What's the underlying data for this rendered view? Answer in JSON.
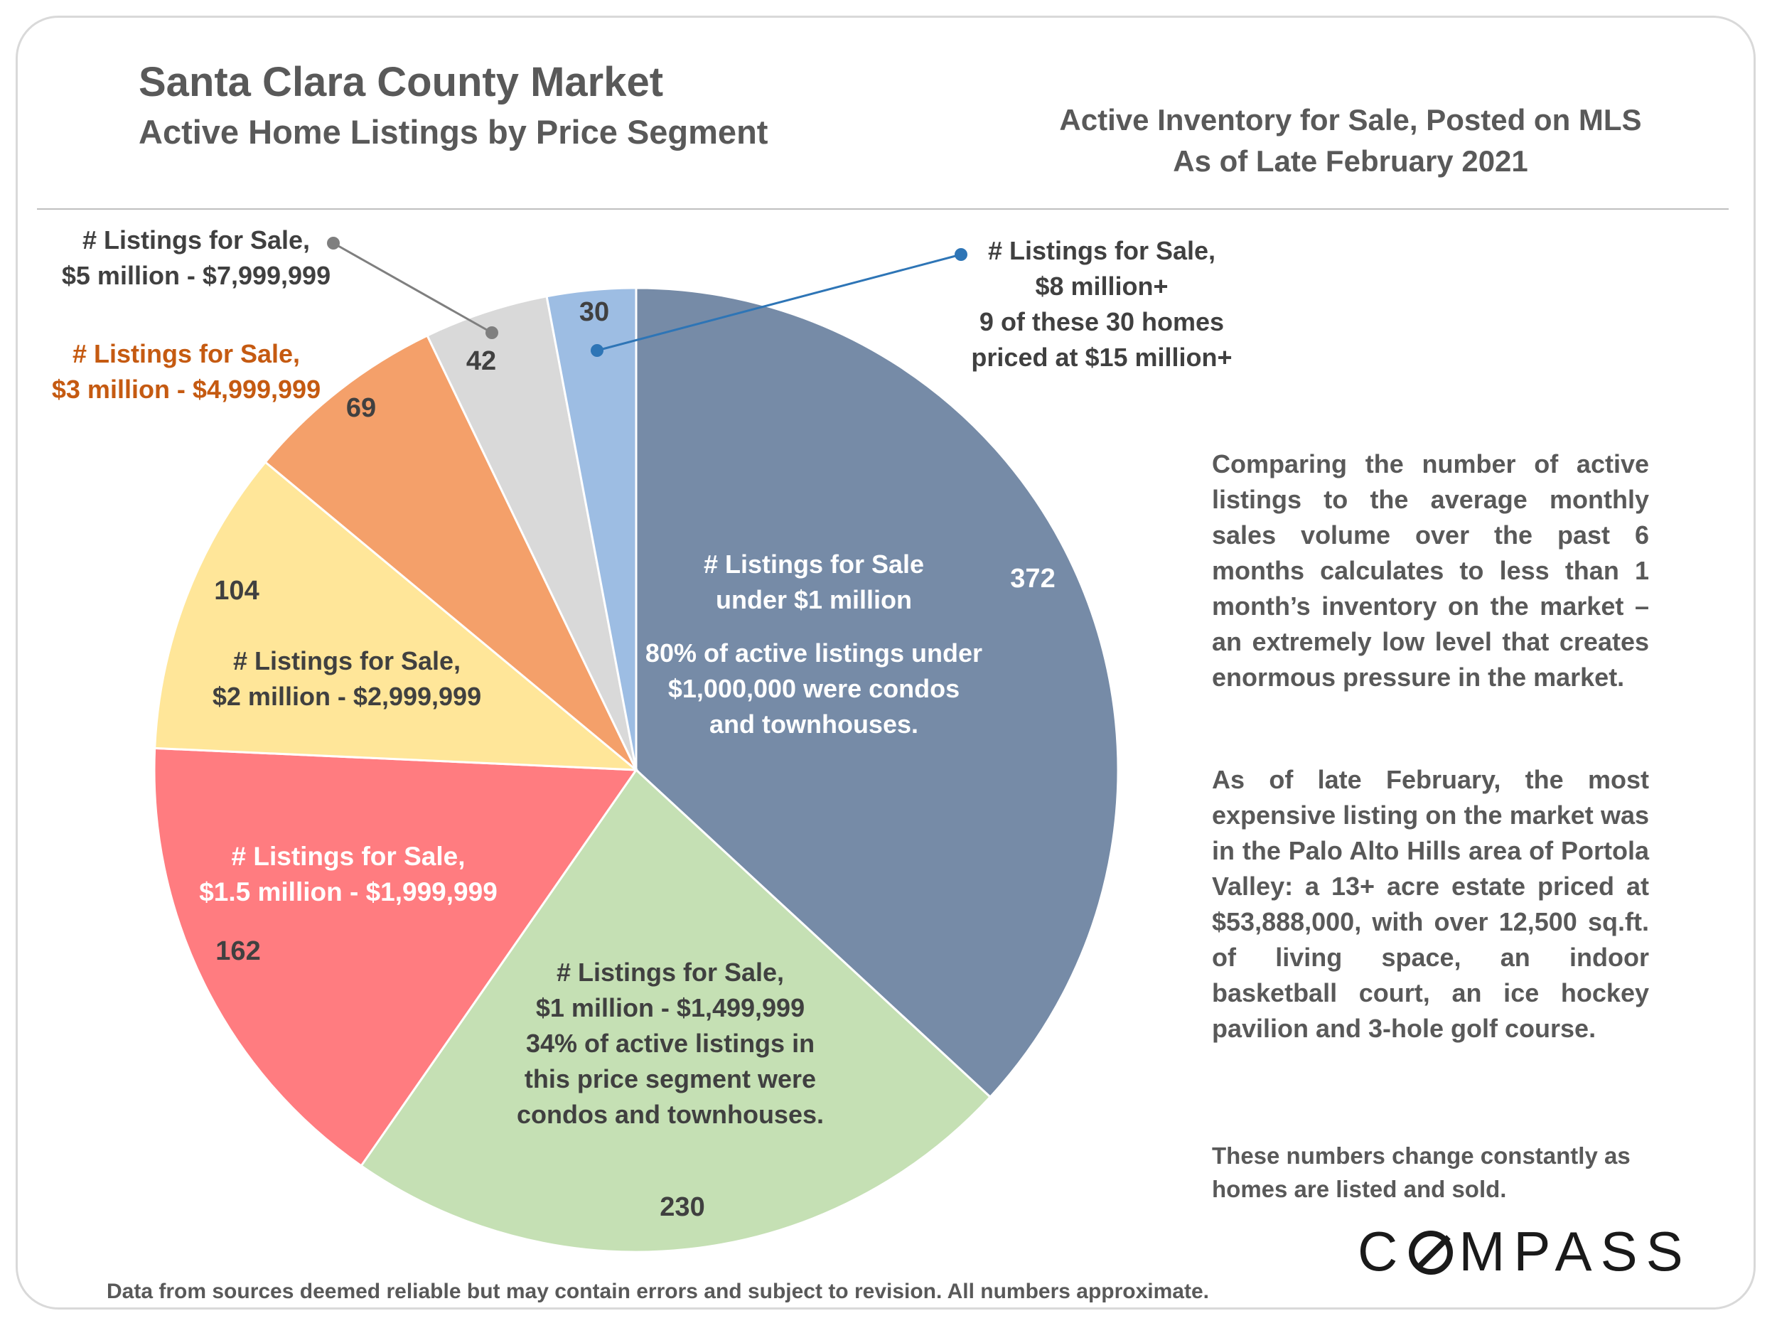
{
  "header": {
    "title": "Santa Clara County Market",
    "subtitle": "Active Home Listings by Price Segment",
    "right_line1": "Active Inventory for Sale, Posted on MLS",
    "right_line2": "As of Late February 2021"
  },
  "chart_data": {
    "type": "pie",
    "start": "12 o'clock, clockwise",
    "slices": [
      {
        "value": 372,
        "label_lines": [
          "# Listings for Sale",
          "under $1 million",
          "",
          "80% of active listings under",
          "$1,000,000 were condos",
          "and townhouses."
        ],
        "color": "#768ba7",
        "label_color": "#ffffff"
      },
      {
        "value": 230,
        "label_lines": [
          "# Listings for Sale,",
          "$1 million - $1,499,999",
          "34% of active listings in",
          "this price segment were",
          "condos and townhouses."
        ],
        "color": "#c5e0b4",
        "label_color": "#404040"
      },
      {
        "value": 162,
        "label_lines": [
          "# Listings for Sale,",
          "$1.5 million - $1,999,999"
        ],
        "color": "#ff7c80",
        "label_color": "#ffffff"
      },
      {
        "value": 104,
        "label_lines": [
          "# Listings for Sale,",
          "$2 million - $2,999,999"
        ],
        "color": "#ffe699",
        "label_color": "#404040"
      },
      {
        "value": 69,
        "label_lines": [
          "# Listings for Sale,",
          "$3 million - $4,999,999"
        ],
        "color": "#f4a06a",
        "label_color": "#c55a11"
      },
      {
        "value": 42,
        "label_lines": [
          "# Listings for Sale,",
          "$5 million - $7,999,999"
        ],
        "color": "#d9d9d9",
        "label_color": "#404040"
      },
      {
        "value": 30,
        "label_lines": [
          "# Listings for Sale,",
          "$8 million+",
          "9 of these 30 homes",
          "priced at $15 million+"
        ],
        "color": "#9dbde3",
        "label_color": "#404040"
      }
    ],
    "value_label_color": "#404040",
    "legend": "none"
  },
  "side_text": {
    "para1": "Comparing the number of active listings to the average monthly sales volume over the past 6 months calculates to less than 1 month’s inventory on the market – an extremely low level that creates enormous pressure in the market.",
    "para2": "As of late February, the most expensive listing on the market was in the Palo Alto Hills area of Portola Valley: a 13+ acre estate priced at $53,888,000, with over 12,500 sq.ft. of living space, an indoor basketball court, an ice hockey pavilion and 3-hole golf course.",
    "note": "These numbers change constantly as homes are listed and sold."
  },
  "footer": "Data from sources deemed reliable but may contain errors and subject to revision. All numbers approximate.",
  "logo": {
    "before": "C",
    "after": "MPASS"
  }
}
